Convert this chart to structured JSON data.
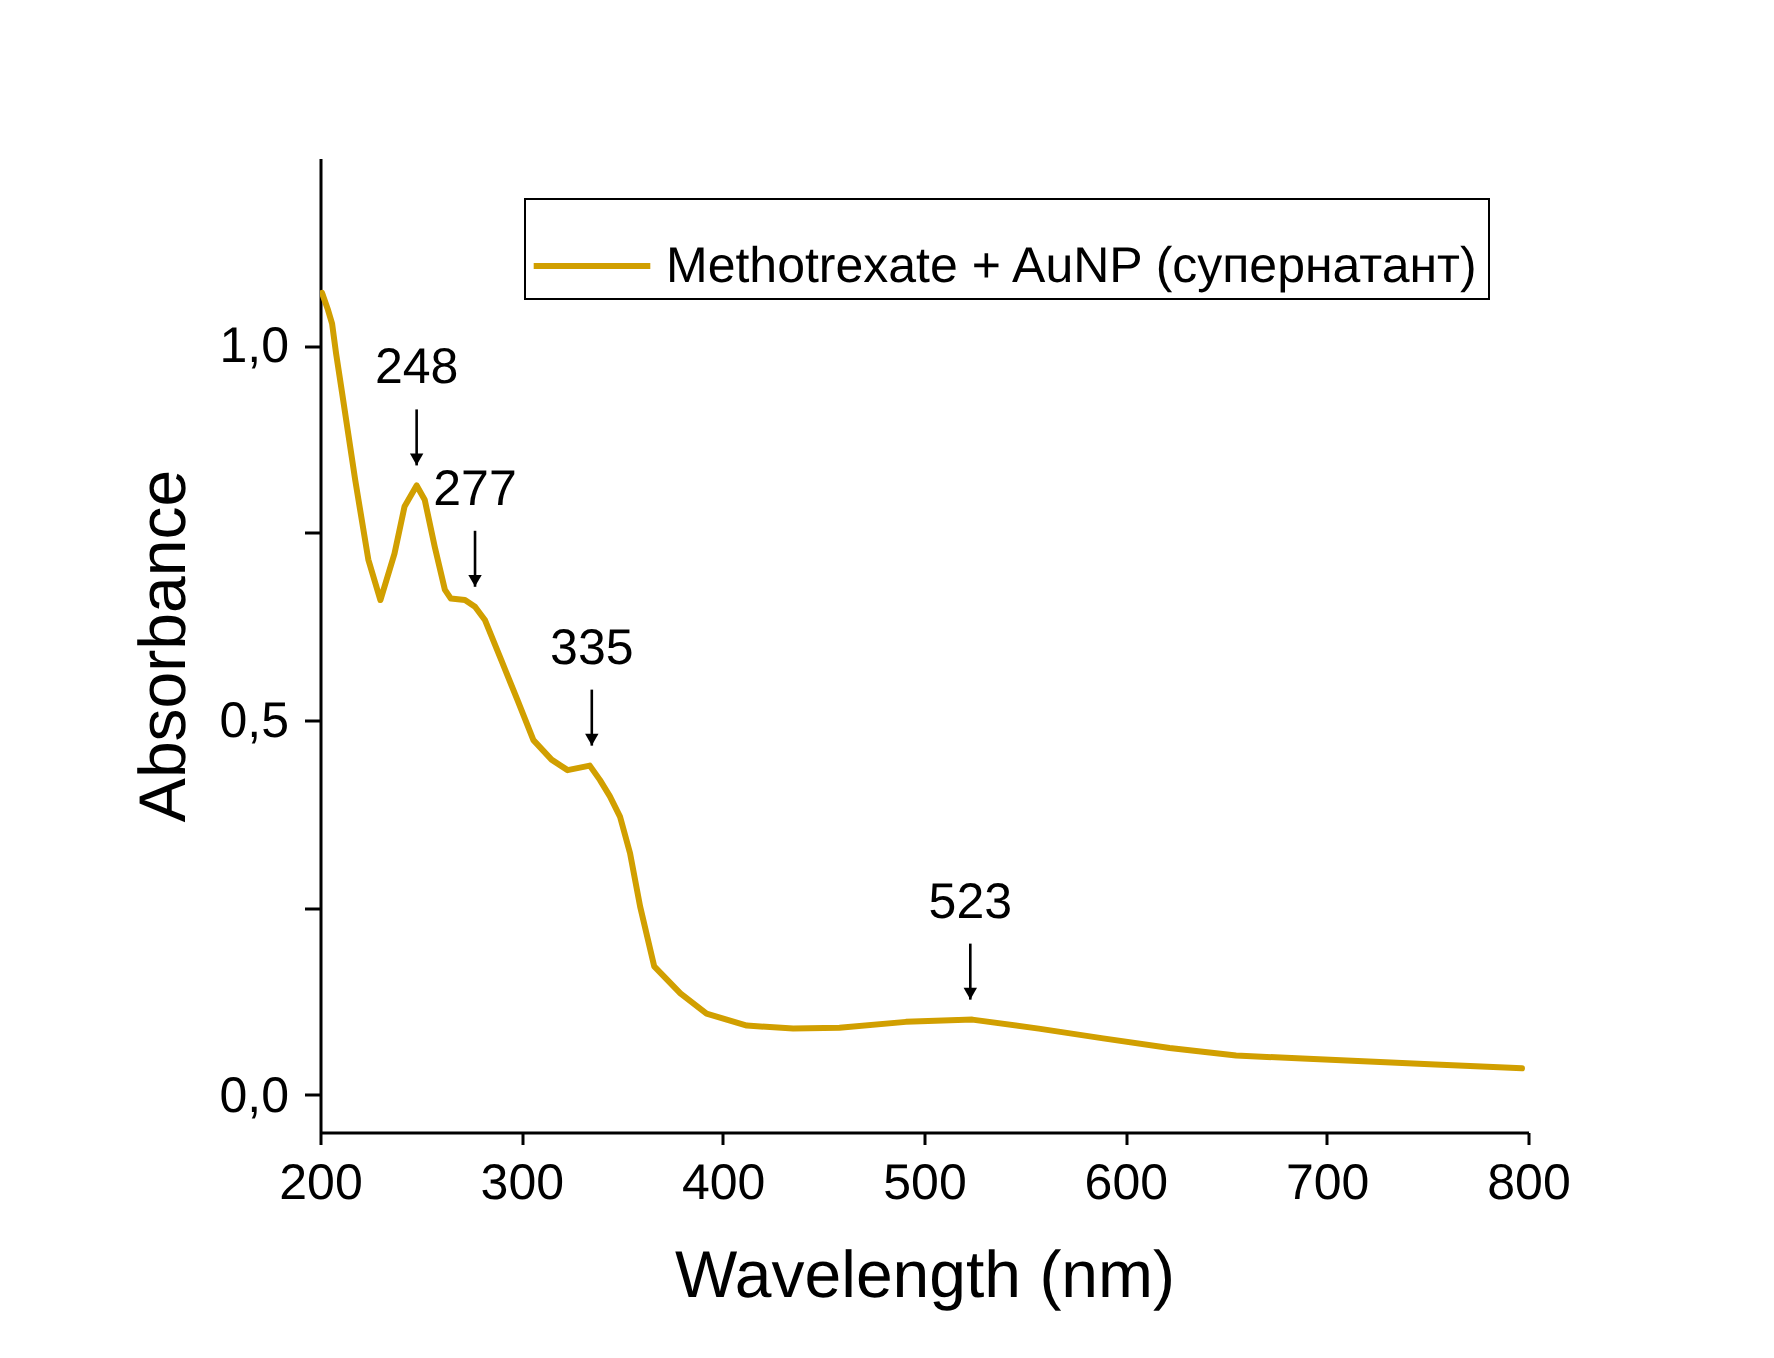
{
  "chart_data": {
    "type": "line",
    "xlabel": "Wavelength (nm)",
    "ylabel": "Absorbance",
    "x": [
      201,
      204,
      206,
      208,
      211,
      217.5,
      224,
      230,
      237,
      242,
      248,
      252,
      257,
      262,
      265,
      272,
      277,
      282,
      290,
      298,
      306,
      315,
      323,
      334,
      339,
      344,
      349,
      354,
      359,
      366,
      379,
      392,
      412,
      435,
      458,
      491,
      524,
      557,
      589,
      622,
      655,
      688,
      721,
      754,
      797
    ],
    "series": [
      {
        "name": "Methotrexate + AuNP (супернатант)",
        "color": "#d19f00",
        "values": [
          1.07,
          1.047,
          1.029,
          0.989,
          0.936,
          0.82,
          0.714,
          0.66,
          0.722,
          0.785,
          0.813,
          0.794,
          0.731,
          0.674,
          0.662,
          0.66,
          0.651,
          0.633,
          0.58,
          0.527,
          0.473,
          0.447,
          0.433,
          0.439,
          0.42,
          0.398,
          0.371,
          0.322,
          0.251,
          0.171,
          0.135,
          0.108,
          0.092,
          0.088,
          0.089,
          0.097,
          0.1,
          0.088,
          0.075,
          0.062,
          0.052,
          0.048,
          0.044,
          0.04,
          0.035
        ]
      }
    ],
    "xlim": [
      200,
      800
    ],
    "ylim": [
      -0.05,
      1.25
    ],
    "xticks": [
      200,
      300,
      400,
      500,
      600,
      700,
      800
    ],
    "yticks": [
      {
        "value": 0,
        "label": "0,0"
      },
      {
        "value": 0.25,
        "label": null
      },
      {
        "value": 0.5,
        "label": "0,5"
      },
      {
        "value": 0.75,
        "label": null
      },
      {
        "value": 1,
        "label": "1,0"
      }
    ],
    "legend": "top right",
    "annotations": [
      {
        "text": "248",
        "x": 248,
        "y": 0.813
      },
      {
        "text": "277",
        "x": 277,
        "y": 0.651
      },
      {
        "text": "335",
        "x": 335,
        "y": 0.439
      },
      {
        "text": "523",
        "x": 523,
        "y": 0.1
      }
    ]
  }
}
